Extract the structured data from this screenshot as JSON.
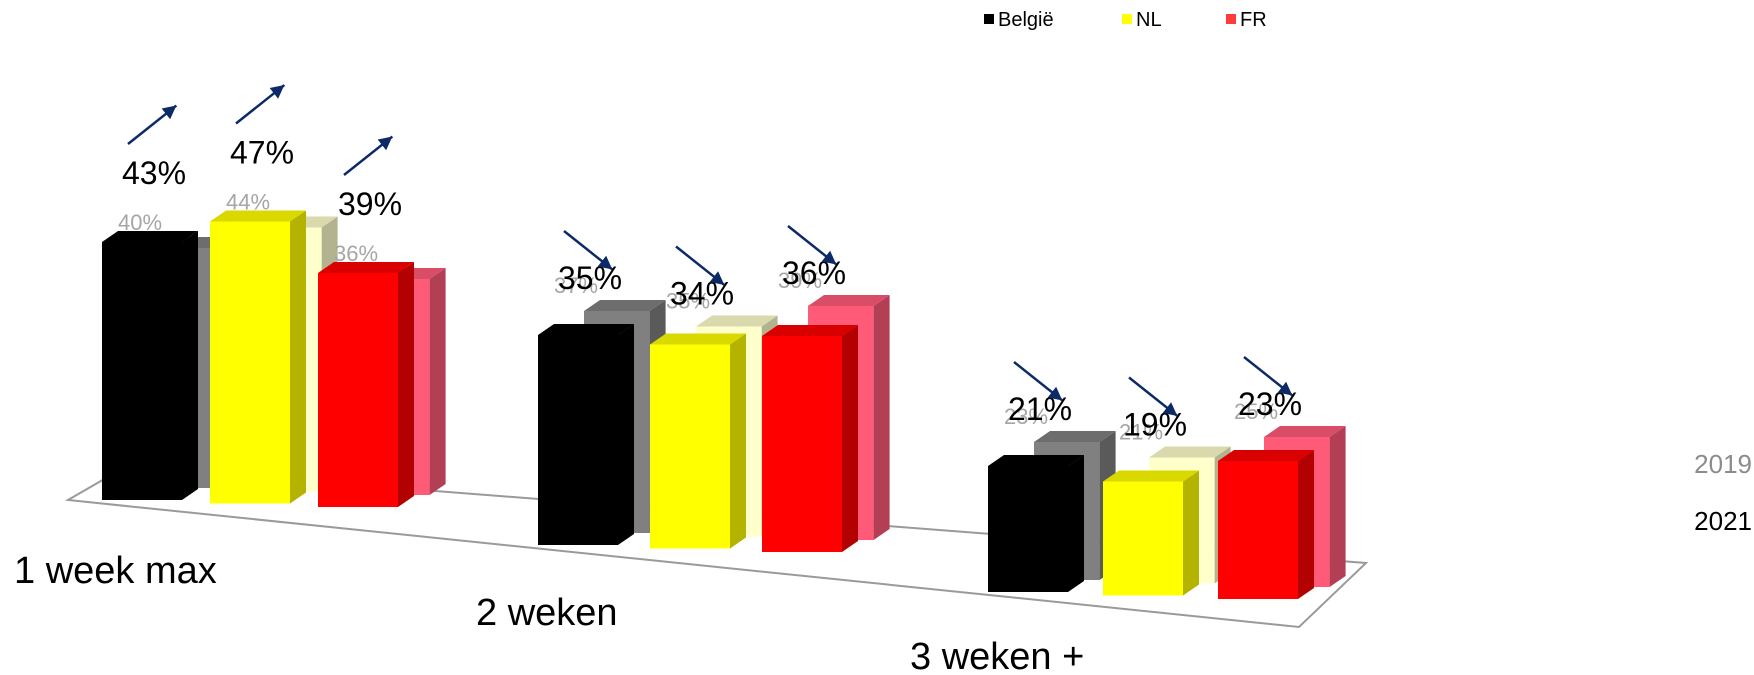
{
  "chart_data": {
    "type": "bar",
    "categories": [
      "1 week max",
      "2 weken",
      "3 weken +"
    ],
    "series_years": [
      "2019",
      "2021"
    ],
    "legend": [
      {
        "name": "België",
        "color": "#000000"
      },
      {
        "name": "NL",
        "color": "#ffff00"
      },
      {
        "name": "FR",
        "color": "#ff3b3b"
      }
    ],
    "series": [
      {
        "name": "België",
        "values_2019": [
          40,
          37,
          23
        ],
        "values_2021": [
          43,
          35,
          21
        ],
        "color_2021": "#000000",
        "color_2019": "#808080"
      },
      {
        "name": "NL",
        "values_2019": [
          44,
          35,
          21
        ],
        "values_2021": [
          47,
          34,
          19
        ],
        "color_2021": "#ffff00",
        "color_2019": "#ffffcc"
      },
      {
        "name": "FR",
        "values_2019": [
          36,
          39,
          25
        ],
        "values_2021": [
          39,
          36,
          23
        ],
        "color_2021": "#ff0000",
        "color_2019": "#ff5a78"
      }
    ],
    "trend": [
      [
        "up",
        "up",
        "up"
      ],
      [
        "down",
        "down",
        "down"
      ],
      [
        "down",
        "down",
        "down"
      ]
    ],
    "arrow_color": "#0d2a66"
  }
}
